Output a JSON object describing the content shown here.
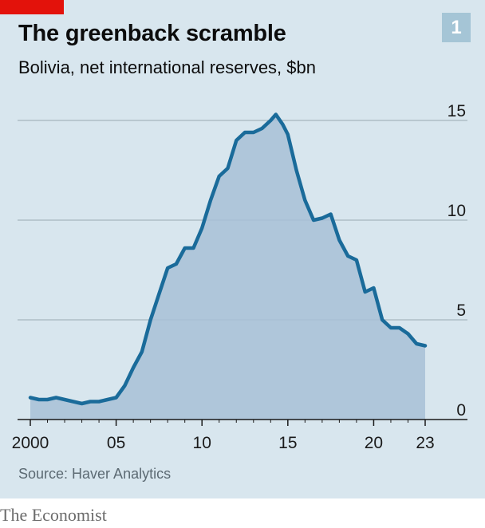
{
  "header": {
    "title": "The greenback scramble",
    "subtitle": "Bolivia, net international reserves, $bn",
    "chart_number": "1"
  },
  "footer": {
    "source": "Source: Haver Analytics",
    "brand": "The Economist"
  },
  "colors": {
    "background": "#d8e6ee",
    "line": "#1a6b9a",
    "area": "#a8c0d6",
    "accent_red": "#e3120b"
  },
  "chart_data": {
    "type": "area",
    "title": "The greenback scramble",
    "subtitle": "Bolivia, net international reserves, $bn",
    "xlabel": "",
    "ylabel": "",
    "xlim": [
      2000,
      2023
    ],
    "ylim": [
      0,
      15
    ],
    "grid": true,
    "y_axis_side": "right",
    "y_ticks": [
      0,
      5,
      10,
      15
    ],
    "y_tick_labels": [
      "0",
      "5",
      "10",
      "15"
    ],
    "x_ticks": [
      2000,
      2005,
      2010,
      2015,
      2020,
      2023
    ],
    "x_tick_labels": [
      "2000",
      "05",
      "10",
      "15",
      "20",
      "23"
    ],
    "series": [
      {
        "x": [
          2000.0,
          2000.5,
          2001.0,
          2001.5,
          2002.0,
          2002.5,
          2003.0,
          2003.5,
          2004.0,
          2004.5,
          2005.0,
          2005.5,
          2006.0,
          2006.5,
          2007.0,
          2007.5,
          2008.0,
          2008.5,
          2009.0,
          2009.5,
          2010.0,
          2010.5,
          2011.0,
          2011.5,
          2012.0,
          2012.5,
          2013.0,
          2013.5,
          2014.0,
          2014.3,
          2014.7,
          2015.0,
          2015.5,
          2016.0,
          2016.5,
          2017.0,
          2017.5,
          2018.0,
          2018.5,
          2019.0,
          2019.5,
          2020.0,
          2020.5,
          2021.0,
          2021.5,
          2022.0,
          2022.5,
          2023.0
        ],
        "values": [
          1.1,
          1.0,
          1.0,
          1.1,
          1.0,
          0.9,
          0.8,
          0.9,
          0.9,
          1.0,
          1.1,
          1.7,
          2.6,
          3.4,
          5.0,
          6.3,
          7.6,
          7.8,
          8.6,
          8.6,
          9.6,
          11.0,
          12.2,
          12.6,
          14.0,
          14.4,
          14.4,
          14.6,
          15.0,
          15.3,
          14.8,
          14.3,
          12.5,
          11.0,
          10.0,
          10.1,
          10.3,
          9.0,
          8.2,
          8.0,
          6.4,
          6.6,
          5.0,
          4.6,
          4.6,
          4.3,
          3.8,
          3.7
        ]
      }
    ]
  }
}
